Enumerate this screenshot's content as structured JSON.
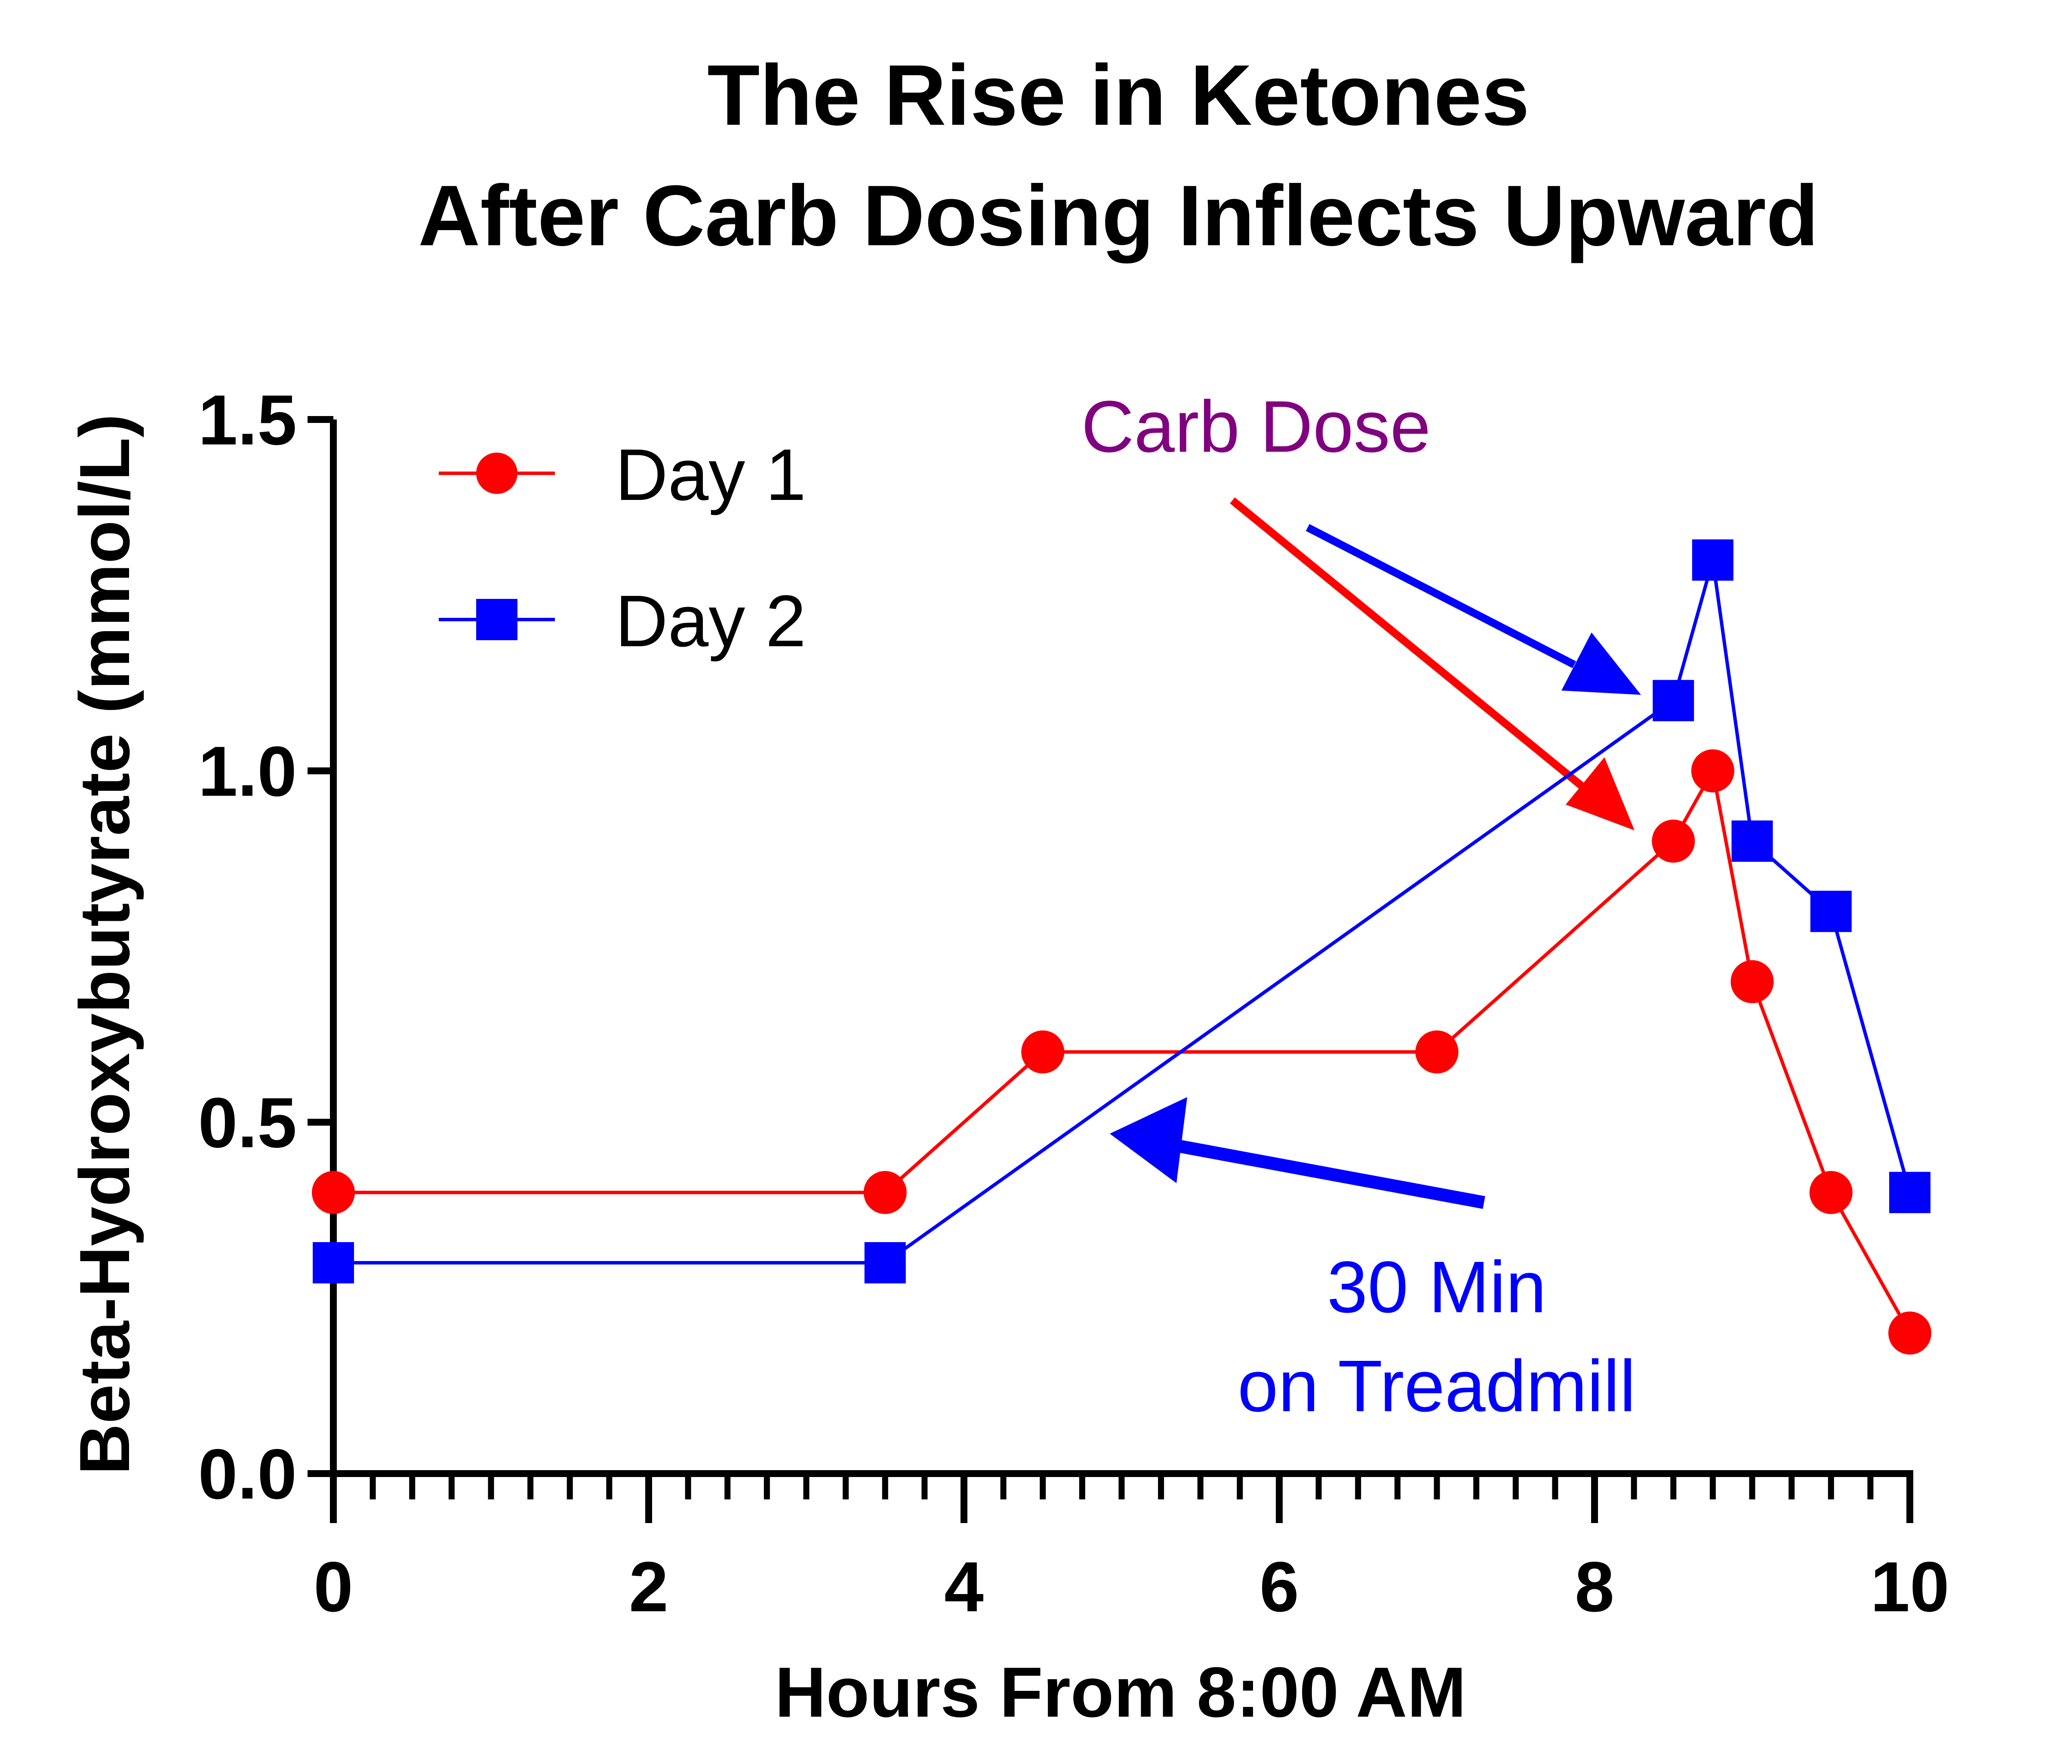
{
  "chart_data": {
    "type": "line",
    "title_lines": [
      "The Rise in Ketones",
      "After Carb Dosing Inflects Upward"
    ],
    "xlabel": "Hours From 8:00 AM",
    "ylabel": "Beta-Hydroxybutyrate (mmol/L)",
    "xlim": [
      0,
      10
    ],
    "ylim": [
      0,
      1.5
    ],
    "x_ticks": [
      0,
      2,
      4,
      6,
      8,
      10
    ],
    "x_tick_labels": [
      "0",
      "2",
      "4",
      "6",
      "8",
      "10"
    ],
    "x_minor_step": 0.25,
    "y_ticks": [
      0,
      0.5,
      1.0,
      1.5
    ],
    "y_tick_labels": [
      "0.0",
      "0.5",
      "1.0",
      "1.5"
    ],
    "grid": false,
    "legend_position": "top-left",
    "series": [
      {
        "name": "Day 1",
        "color": "#ff0000",
        "marker": "circle",
        "x": [
          0,
          3.5,
          4.5,
          7,
          8.5,
          8.75,
          9,
          9.5,
          10
        ],
        "y": [
          0.4,
          0.4,
          0.6,
          0.6,
          0.9,
          1.0,
          0.7,
          0.4,
          0.2
        ]
      },
      {
        "name": "Day 2",
        "color": "#0000ff",
        "marker": "square",
        "x": [
          0,
          3.5,
          8.5,
          8.75,
          9,
          9.5,
          10
        ],
        "y": [
          0.3,
          0.3,
          1.1,
          1.3,
          0.9,
          0.8,
          0.4
        ]
      }
    ],
    "annotations": [
      {
        "id": "carb-dose",
        "lines": [
          "Carb Dose"
        ],
        "color": "#800080"
      },
      {
        "id": "treadmill",
        "lines": [
          "30 Min",
          "on Treadmill"
        ],
        "color": "#0000ff"
      }
    ]
  }
}
